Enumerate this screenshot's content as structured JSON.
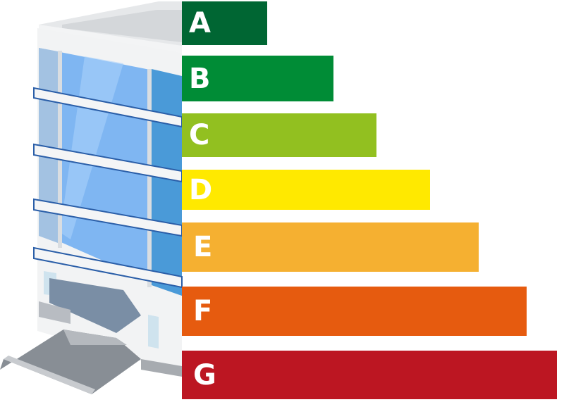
{
  "ratings": [
    {
      "label": "A",
      "color": "#006633",
      "level": 1
    },
    {
      "label": "B",
      "color": "#008c36",
      "level": 2
    },
    {
      "label": "C",
      "color": "#92c020",
      "level": 3
    },
    {
      "label": "D",
      "color": "#ffe900",
      "level": 4
    },
    {
      "label": "E",
      "color": "#f5b031",
      "level": 5
    },
    {
      "label": "F",
      "color": "#e65b0f",
      "level": 6
    },
    {
      "label": "G",
      "color": "#bc1622",
      "level": 7
    }
  ]
}
